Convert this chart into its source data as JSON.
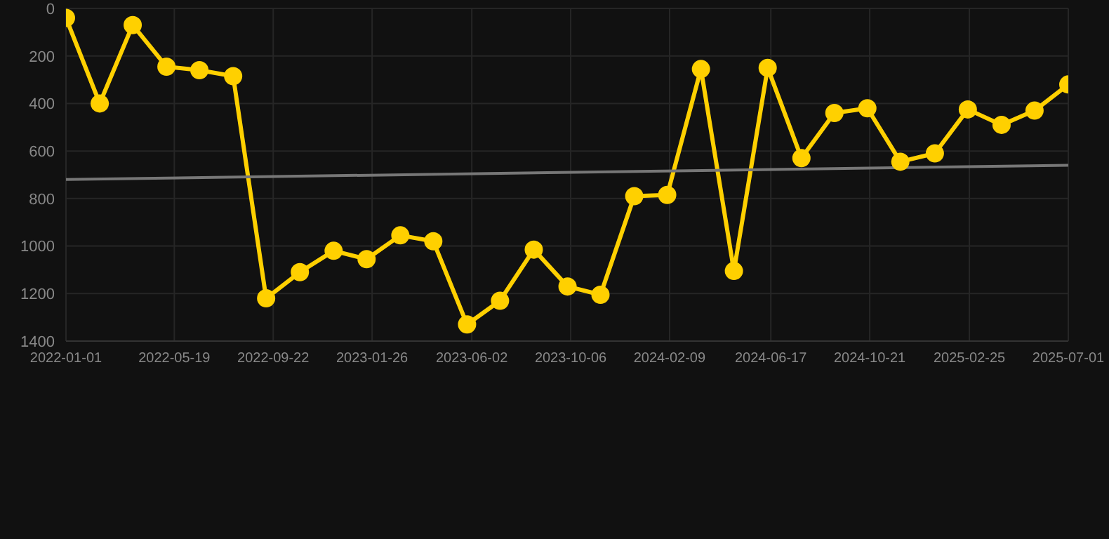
{
  "chart_data": {
    "type": "line",
    "x": [
      "2022-01-01",
      "2022-02-13",
      "2022-03-27",
      "2022-05-09",
      "2022-06-20",
      "2022-08-02",
      "2022-09-13",
      "2022-10-26",
      "2022-12-08",
      "2023-01-19",
      "2023-03-03",
      "2023-04-14",
      "2023-05-27",
      "2023-07-08",
      "2023-08-20",
      "2023-10-02",
      "2023-11-13",
      "2023-12-26",
      "2024-02-06",
      "2024-03-20",
      "2024-05-01",
      "2024-06-13",
      "2024-07-26",
      "2024-09-06",
      "2024-10-18",
      "2024-11-29",
      "2025-01-12",
      "2025-02-23",
      "2025-04-07",
      "2025-05-19",
      "2025-07-01"
    ],
    "series": [
      {
        "color": "#ffd000",
        "marker": "circle",
        "values": [
          40,
          400,
          70,
          245,
          260,
          285,
          1220,
          1110,
          1020,
          1055,
          955,
          980,
          1330,
          1230,
          1015,
          1170,
          1205,
          790,
          785,
          255,
          1105,
          250,
          630,
          440,
          420,
          645,
          610,
          425,
          490,
          430,
          320
        ]
      },
      {
        "type": "line",
        "color": "#777777",
        "marker": "none",
        "x": [
          "2022-01-01",
          "2025-07-01"
        ],
        "values": [
          720,
          660
        ]
      }
    ],
    "xlim": [
      "2022-01-01",
      "2025-07-01"
    ],
    "xticks": [
      "2022-01-01",
      "2022-05-19",
      "2022-09-22",
      "2023-01-26",
      "2023-06-02",
      "2023-10-06",
      "2024-02-09",
      "2024-06-17",
      "2024-10-21",
      "2025-02-25",
      "2025-07-01"
    ],
    "ylim": [
      1400,
      0
    ],
    "yticks": [
      0,
      200,
      400,
      600,
      800,
      1000,
      1200,
      1400
    ],
    "grid": true
  }
}
